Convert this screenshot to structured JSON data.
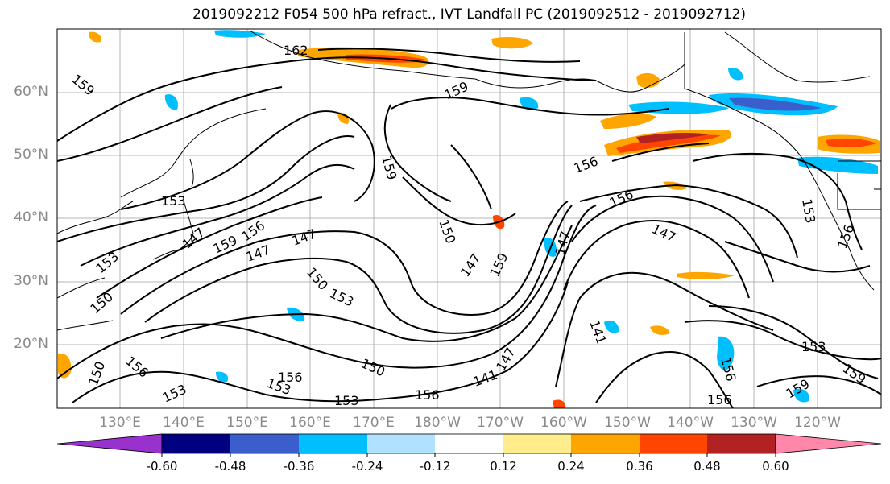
{
  "title": "2019092212 F054 500 hPa refract., IVT Landfall PC (2019092512 - 2019092712)",
  "map": {
    "lat_labels": [
      "60°N",
      "50°N",
      "40°N",
      "30°N",
      "20°N"
    ],
    "lon_labels": [
      "130°E",
      "140°E",
      "150°E",
      "160°E",
      "170°E",
      "180°W",
      "170°W",
      "160°W",
      "150°W",
      "140°W",
      "130°W",
      "120°W"
    ],
    "contour_labels": [
      "162",
      "159",
      "159",
      "159",
      "156",
      "153",
      "153",
      "150",
      "159",
      "156",
      "147",
      "150",
      "153",
      "147",
      "147",
      "150",
      "147",
      "159",
      "147",
      "153",
      "156",
      "156",
      "153",
      "150",
      "153",
      "156",
      "141",
      "147",
      "156",
      "153",
      "156",
      "159",
      "156",
      "153",
      "150",
      "159",
      "141",
      "156",
      "147"
    ],
    "colors": {
      "contour": "#000000",
      "coastline": "#000000",
      "gridline": "#b4b4b4",
      "axis_label": "#8a8a8a"
    }
  },
  "colorbar": {
    "tick_labels": [
      "-0.60",
      "-0.48",
      "-0.36",
      "-0.24",
      "-0.12",
      "0.12",
      "0.24",
      "0.36",
      "0.48",
      "0.60"
    ],
    "bins": [
      {
        "range": "< -0.60",
        "color": "#9932cc"
      },
      {
        "range": "-0.60 to -0.48",
        "color": "#000080"
      },
      {
        "range": "-0.48 to -0.36",
        "color": "#3a5fcd"
      },
      {
        "range": "-0.36 to -0.24",
        "color": "#00bfff"
      },
      {
        "range": "-0.24 to -0.12",
        "color": "#b0e2ff"
      },
      {
        "range": "-0.12 to 0.12",
        "color": "#ffffff"
      },
      {
        "range": "0.12 to 0.24",
        "color": "#ffec8b"
      },
      {
        "range": "0.24 to 0.36",
        "color": "#ffa500"
      },
      {
        "range": "0.36 to 0.48",
        "color": "#ff4500"
      },
      {
        "range": "0.48 to 0.60",
        "color": "#b22222"
      },
      {
        "range": "> 0.60",
        "color": "#ff88aa"
      }
    ]
  }
}
